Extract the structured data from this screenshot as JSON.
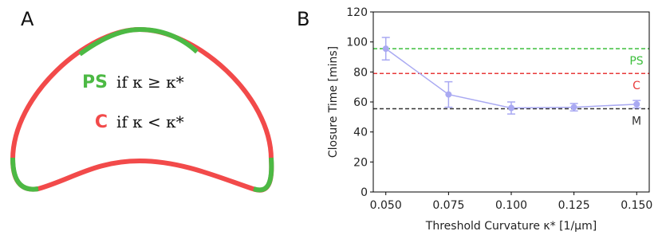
{
  "panel_a": {
    "label": "A",
    "rules": [
      {
        "name": "PS",
        "text": "if κ ≥ κ*",
        "color": "#4cb944"
      },
      {
        "name": "C",
        "text": "if κ < κ*",
        "color": "#f24a4a"
      }
    ]
  },
  "chart_data": {
    "type": "line",
    "panel_label": "B",
    "x_label": "Threshold Curvature κ* [1/μm]",
    "y_label": "Closure Time [mins]",
    "x": [
      0.05,
      0.075,
      0.1,
      0.125,
      0.15
    ],
    "series": [
      {
        "color": "#a9a9f2",
        "values": [
          95.5,
          65,
          56,
          56.5,
          58.5
        ],
        "errors": [
          7.5,
          8.5,
          4,
          2.5,
          2.5
        ]
      }
    ],
    "hlines": [
      {
        "label": "PS",
        "value": 95.5,
        "color": "#3cbf3c"
      },
      {
        "label": "C",
        "value": 79,
        "color": "#e83a3a"
      },
      {
        "label": "M",
        "value": 55.5,
        "color": "#333333"
      }
    ],
    "xlim": [
      0.045,
      0.155
    ],
    "ylim": [
      0,
      120
    ],
    "xticks": [
      {
        "value": 0.05,
        "label": "0.050"
      },
      {
        "value": 0.075,
        "label": "0.075"
      },
      {
        "value": 0.1,
        "label": "0.100"
      },
      {
        "value": 0.125,
        "label": "0.125"
      },
      {
        "value": 0.15,
        "label": "0.150"
      }
    ],
    "yticks": [
      0,
      20,
      40,
      60,
      80,
      100,
      120
    ]
  }
}
